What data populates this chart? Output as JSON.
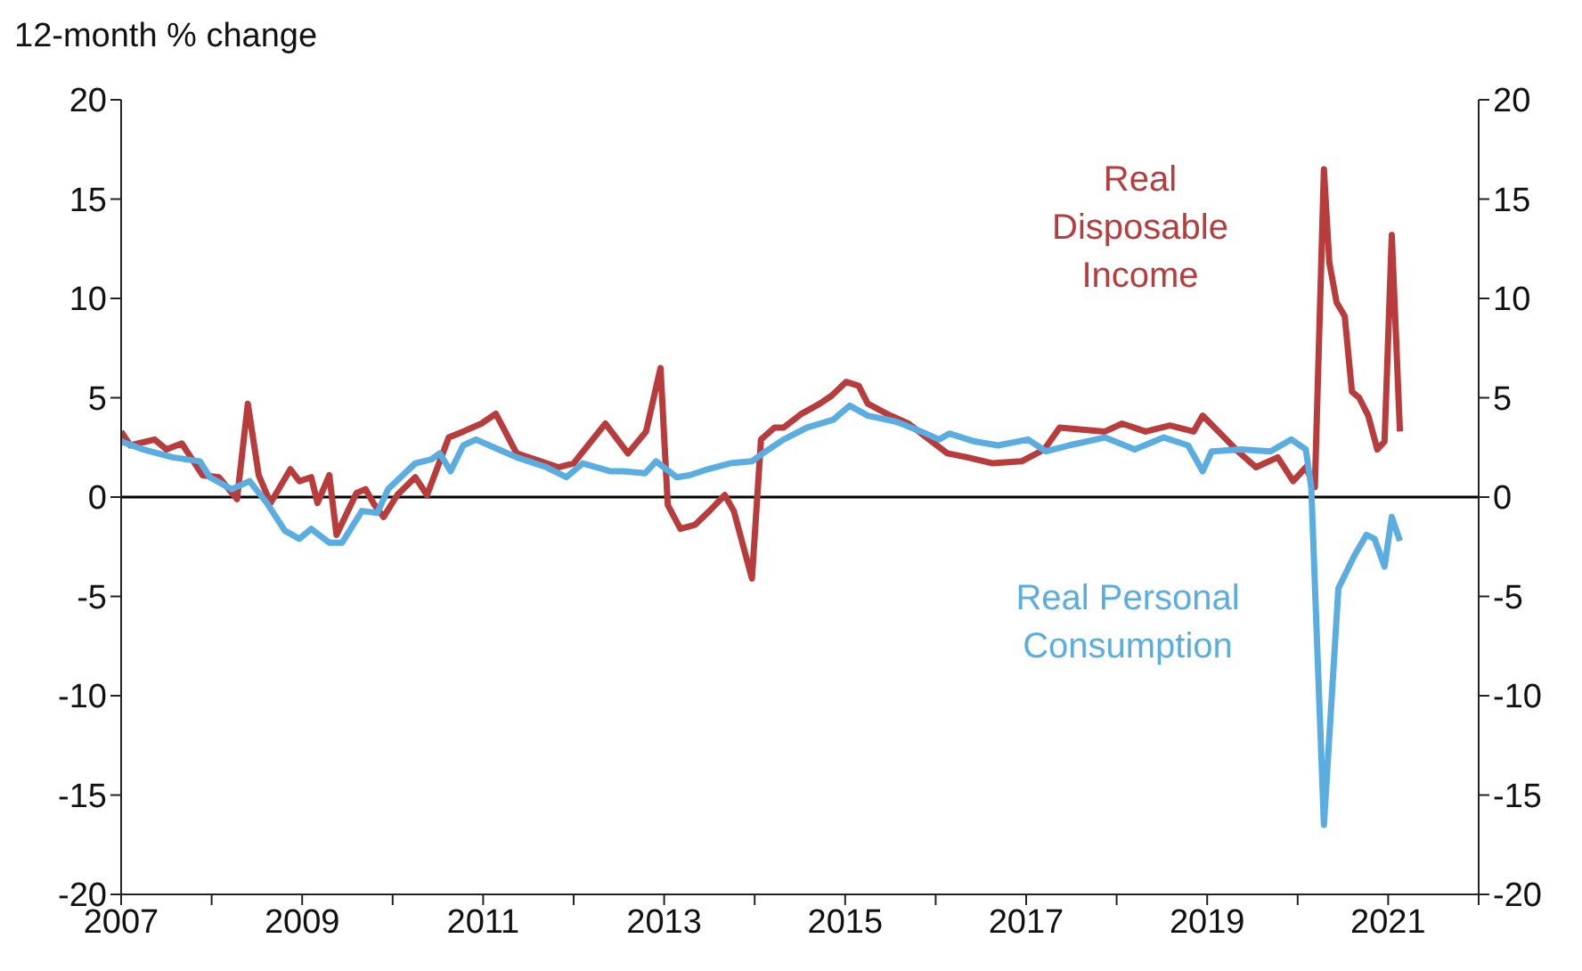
{
  "chart_data": {
    "type": "line",
    "ylabel": "12-month % change",
    "xlim": [
      2007,
      2022
    ],
    "xticks": [
      2007,
      {
        "value": 2008,
        "label": null
      },
      2009,
      {
        "value": 2010,
        "label": null
      },
      2011,
      {
        "value": 2012,
        "label": null
      },
      2013,
      {
        "value": 2014,
        "label": null
      },
      2015,
      {
        "value": 2016,
        "label": null
      },
      2017,
      {
        "value": 2018,
        "label": null
      },
      2019,
      {
        "value": 2020,
        "label": null
      },
      2021,
      {
        "value": 2022,
        "label": null
      }
    ],
    "ylim": [
      -20,
      20
    ],
    "yticks": [
      -20,
      -15,
      -10,
      -5,
      0,
      5,
      10,
      15,
      20
    ],
    "y2lim": [
      -20,
      20
    ],
    "y2ticks": [
      -20,
      -15,
      -10,
      -5,
      0,
      5,
      10,
      15,
      20
    ],
    "ref_lines": [
      {
        "axis": "y",
        "value": 0,
        "color": "#000000"
      }
    ],
    "legend": false,
    "grid": false,
    "series": [
      {
        "name": "Real Disposable Income",
        "color": "#b83c3c",
        "x": [
          2007.0,
          2007.1,
          2007.37,
          2007.5,
          2007.67,
          2007.9,
          2008.08,
          2008.28,
          2008.4,
          2008.52,
          2008.65,
          2008.87,
          2008.97,
          2009.1,
          2009.17,
          2009.3,
          2009.38,
          2009.6,
          2009.7,
          2009.8,
          2009.9,
          2010.05,
          2010.25,
          2010.38,
          2010.62,
          2010.78,
          2010.98,
          2011.14,
          2011.37,
          2011.57,
          2011.83,
          2012.0,
          2012.35,
          2012.6,
          2012.8,
          2012.96,
          2013.04,
          2013.18,
          2013.34,
          2013.5,
          2013.67,
          2013.77,
          2013.97,
          2014.07,
          2014.22,
          2014.32,
          2014.52,
          2014.72,
          2014.85,
          2015.01,
          2015.15,
          2015.25,
          2015.5,
          2015.7,
          2015.9,
          2016.13,
          2016.35,
          2016.63,
          2016.95,
          2017.2,
          2017.37,
          2017.87,
          2018.06,
          2018.32,
          2018.59,
          2018.85,
          2018.95,
          2019.19,
          2019.34,
          2019.54,
          2019.78,
          2019.95,
          2020.09,
          2020.19,
          2020.29,
          2020.35,
          2020.43,
          2020.52,
          2020.6,
          2020.68,
          2020.78,
          2020.88,
          2020.96,
          2021.04,
          2021.13
        ],
        "values": [
          3.3,
          2.6,
          2.9,
          2.4,
          2.7,
          1.1,
          1.0,
          -0.1,
          4.7,
          1.1,
          -0.3,
          1.4,
          0.8,
          1.0,
          -0.3,
          1.1,
          -1.9,
          0.2,
          0.4,
          -0.4,
          -1.0,
          0.1,
          1.0,
          0.1,
          3.0,
          3.3,
          3.7,
          4.2,
          2.2,
          1.9,
          1.5,
          1.7,
          3.7,
          2.2,
          3.3,
          6.5,
          -0.4,
          -1.6,
          -1.4,
          -0.7,
          0.1,
          -0.7,
          -4.1,
          2.9,
          3.5,
          3.5,
          4.2,
          4.7,
          5.1,
          5.8,
          5.6,
          4.7,
          4.1,
          3.7,
          3.0,
          2.2,
          2.0,
          1.7,
          1.8,
          2.4,
          3.5,
          3.3,
          3.7,
          3.3,
          3.6,
          3.3,
          4.1,
          3.0,
          2.3,
          1.5,
          2.0,
          0.8,
          1.5,
          0.5,
          16.5,
          11.8,
          9.8,
          9.1,
          5.3,
          5.0,
          4.1,
          2.4,
          2.8,
          13.2,
          3.3
        ]
      },
      {
        "name": "Real Personal Consumption",
        "color": "#5aade0",
        "x": [
          2007.0,
          2007.24,
          2007.57,
          2007.87,
          2007.98,
          2008.22,
          2008.42,
          2008.61,
          2008.81,
          2008.97,
          2009.1,
          2009.3,
          2009.44,
          2009.66,
          2009.83,
          2009.95,
          2010.25,
          2010.43,
          2010.52,
          2010.64,
          2010.78,
          2010.92,
          2011.17,
          2011.37,
          2011.7,
          2011.92,
          2012.1,
          2012.41,
          2012.55,
          2012.79,
          2012.91,
          2013.14,
          2013.28,
          2013.48,
          2013.73,
          2013.97,
          2014.09,
          2014.32,
          2014.58,
          2014.87,
          2015.05,
          2015.25,
          2015.56,
          2015.84,
          2016.04,
          2016.15,
          2016.43,
          2016.69,
          2017.02,
          2017.22,
          2017.47,
          2017.87,
          2018.2,
          2018.52,
          2018.79,
          2018.95,
          2019.05,
          2019.38,
          2019.7,
          2019.93,
          2020.09,
          2020.15,
          2020.29,
          2020.45,
          2020.62,
          2020.76,
          2020.85,
          2020.96,
          2021.04,
          2021.13
        ],
        "values": [
          2.8,
          2.4,
          2.0,
          1.8,
          1.0,
          0.4,
          0.8,
          -0.3,
          -1.7,
          -2.1,
          -1.6,
          -2.3,
          -2.3,
          -0.7,
          -0.8,
          0.4,
          1.7,
          1.9,
          2.2,
          1.3,
          2.6,
          2.9,
          2.4,
          2.0,
          1.5,
          1.0,
          1.7,
          1.3,
          1.3,
          1.2,
          1.8,
          1.0,
          1.1,
          1.4,
          1.7,
          1.8,
          2.2,
          2.9,
          3.5,
          3.9,
          4.6,
          4.1,
          3.8,
          3.3,
          2.9,
          3.2,
          2.8,
          2.6,
          2.9,
          2.3,
          2.6,
          3.0,
          2.4,
          3.0,
          2.6,
          1.3,
          2.3,
          2.4,
          2.3,
          2.9,
          2.4,
          0.5,
          -16.5,
          -4.6,
          -3.0,
          -1.9,
          -2.1,
          -3.5,
          -1.0,
          -2.2
        ]
      }
    ]
  }
}
